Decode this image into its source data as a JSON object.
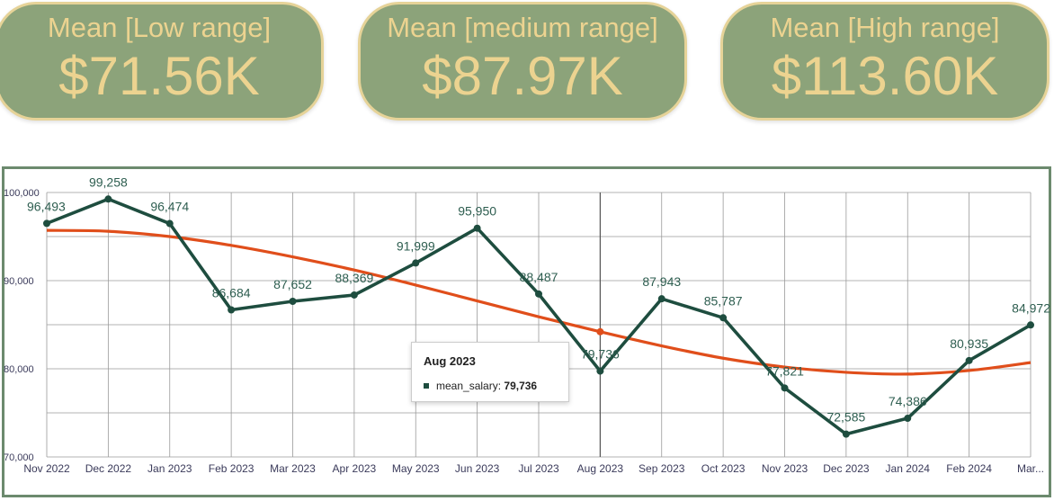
{
  "kpis": [
    {
      "label": "Mean [Low range]",
      "value": "$71.56K"
    },
    {
      "label": "Mean [medium range]",
      "value": "$87.97K"
    },
    {
      "label": "Mean [High range]",
      "value": "$113.60K"
    }
  ],
  "colors": {
    "kpi_bg": "#8ca37a",
    "kpi_text": "#ecd390",
    "series_line": "#1e4d3f",
    "trend_line": "#e04e1b"
  },
  "chart_data": {
    "type": "line",
    "categories": [
      "Nov 2022",
      "Dec 2022",
      "Jan 2023",
      "Feb 2023",
      "Mar 2023",
      "Apr 2023",
      "May 2023",
      "Jun 2023",
      "Jul 2023",
      "Aug 2023",
      "Sep 2023",
      "Oct 2023",
      "Nov 2023",
      "Dec 2023",
      "Jan 2024",
      "Feb 2024",
      "Mar..."
    ],
    "series": [
      {
        "name": "mean_salary",
        "values": [
          96493,
          99258,
          96474,
          86684,
          87652,
          88369,
          91999,
          95950,
          88487,
          79736,
          87943,
          85787,
          77821,
          72585,
          74386,
          80935,
          84972
        ],
        "labels": [
          "96,493",
          "99,258",
          "96,474",
          "86,684",
          "87,652",
          "88,369",
          "91,999",
          "95,950",
          "88,487",
          "79,736",
          "87,943",
          "85,787",
          "77,821",
          "72,585",
          "74,386",
          "80,935",
          "84,972"
        ]
      }
    ],
    "trend": [
      95700,
      95600,
      95000,
      94000,
      92700,
      91200,
      89500,
      87700,
      85900,
      84200,
      82600,
      81200,
      80200,
      79600,
      79400,
      79800,
      80700
    ],
    "yticks": [
      "70,000",
      "80,000",
      "90,000",
      "100,000"
    ],
    "ylim": [
      70000,
      100000
    ],
    "grid": true
  },
  "tooltip": {
    "title": "Aug 2023",
    "series": "mean_salary:",
    "value": "79,736"
  }
}
